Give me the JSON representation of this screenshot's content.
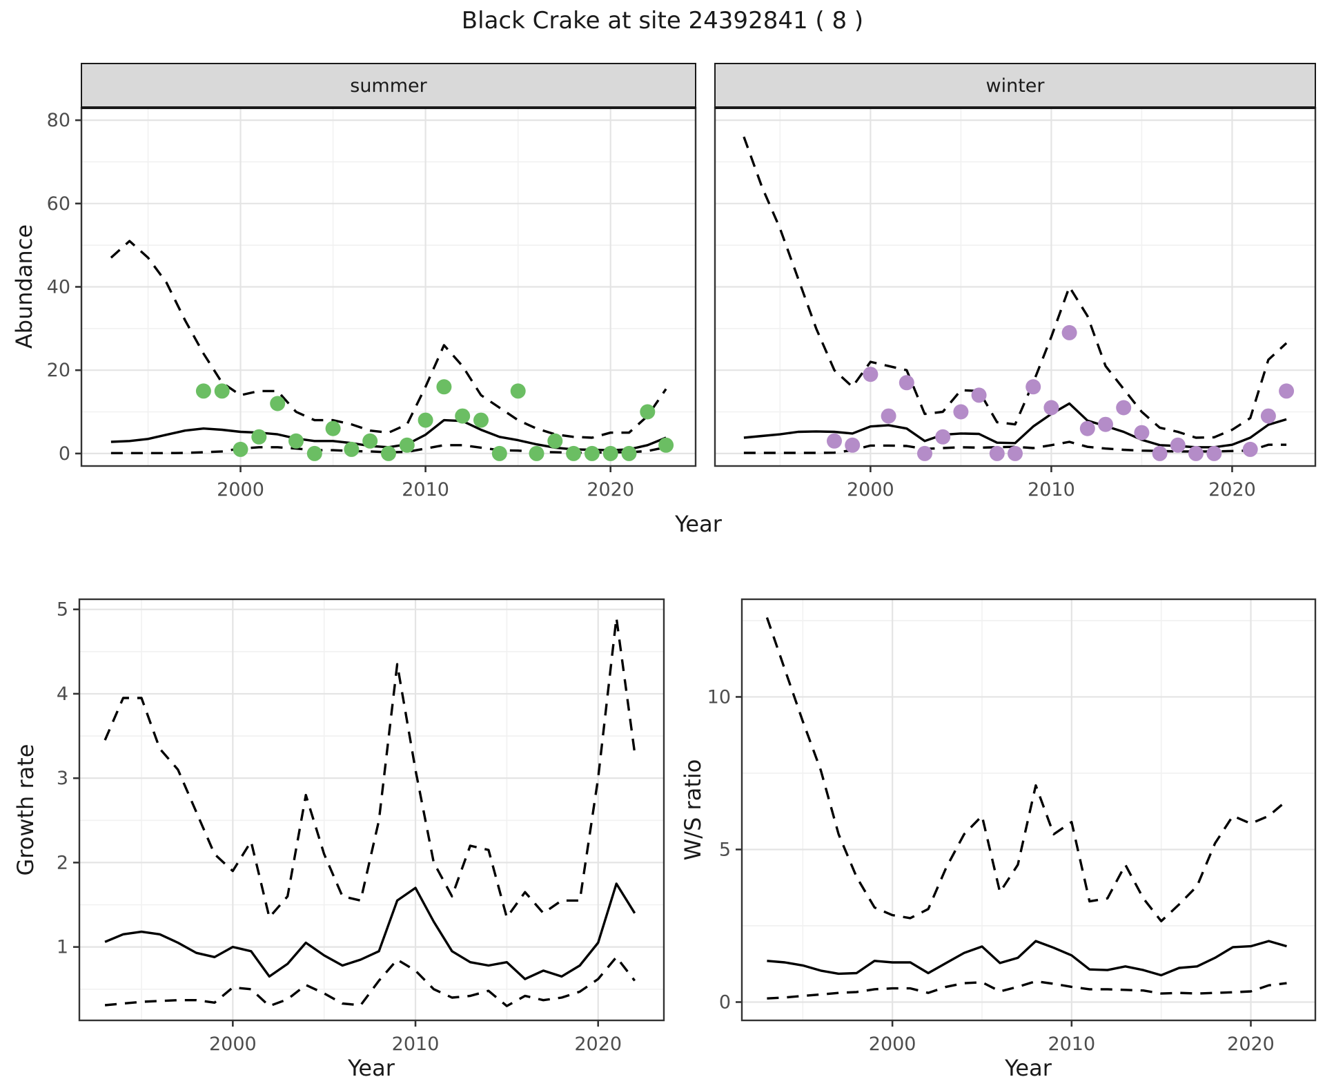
{
  "title": "Black Crake at site 24392841 ( 8 )",
  "colors": {
    "background": "#ffffff",
    "panel_background": "#ffffff",
    "grid_major": "#e4e4e4",
    "grid_minor": "#f1f1f1",
    "panel_border": "#333333",
    "strip_background": "#d9d9d9",
    "strip_border": "#1a1a1a",
    "tick_text": "#4d4d4d",
    "line": "#000000",
    "summer_point": "#6bbe63",
    "winter_point": "#b48cc8"
  },
  "chart_data": [
    {
      "id": "abundance-summer",
      "type": "line",
      "facet_label": "summer",
      "xlabel": "Year",
      "ylabel": "Abundance",
      "xlim": [
        1991.4,
        2024.6
      ],
      "ylim": [
        -3,
        83
      ],
      "xticks": [
        2000,
        2010,
        2020
      ],
      "xtick_labels": [
        "2000",
        "2010",
        "2020"
      ],
      "xminor": [
        1995,
        2005,
        2015
      ],
      "yticks": [
        0,
        20,
        40,
        60,
        80
      ],
      "ytick_labels": [
        "0",
        "20",
        "40",
        "60",
        "80"
      ],
      "yminor": [
        10,
        30,
        50,
        70
      ],
      "years": [
        1993,
        1994,
        1995,
        1996,
        1997,
        1998,
        1999,
        2000,
        2001,
        2002,
        2003,
        2004,
        2005,
        2006,
        2007,
        2008,
        2009,
        2010,
        2011,
        2012,
        2013,
        2014,
        2015,
        2016,
        2017,
        2018,
        2019,
        2020,
        2021,
        2022,
        2023
      ],
      "series": [
        {
          "name": "upper-credible",
          "style": "dashed",
          "values": [
            47,
            51,
            47,
            41,
            32,
            24,
            17,
            14,
            15,
            15,
            10,
            8,
            8,
            7,
            5.5,
            5,
            7,
            16,
            26,
            21,
            14,
            11,
            8,
            6,
            4.6,
            4,
            3.8,
            5,
            5,
            9,
            15.5
          ]
        },
        {
          "name": "estimate",
          "style": "solid",
          "values": [
            2.8,
            3,
            3.5,
            4.5,
            5.5,
            6,
            5.7,
            5.2,
            5,
            4.6,
            3.6,
            3,
            3,
            2.5,
            1.8,
            1.5,
            2.2,
            4.5,
            8,
            7.8,
            5.7,
            4,
            3.2,
            2.2,
            1.4,
            1,
            0.9,
            0.8,
            1,
            2,
            3.8
          ]
        },
        {
          "name": "lower-credible",
          "style": "dashed",
          "values": [
            0.1,
            0.1,
            0.1,
            0.1,
            0.15,
            0.3,
            0.5,
            1.2,
            1.5,
            1.5,
            1.2,
            0.8,
            0.8,
            0.6,
            0.5,
            0.3,
            0.4,
            1.2,
            2,
            2,
            1.4,
            0.8,
            0.7,
            0.4,
            0.3,
            0.2,
            0.2,
            0.3,
            0.3,
            0.6,
            1.5
          ]
        }
      ],
      "points": {
        "name": "observed-counts-summer",
        "color": "#6bbe63",
        "years": [
          1998,
          1999,
          2000,
          2001,
          2002,
          2003,
          2004,
          2005,
          2006,
          2007,
          2008,
          2009,
          2010,
          2011,
          2012,
          2013,
          2014,
          2015,
          2016,
          2017,
          2018,
          2019,
          2020,
          2021,
          2022,
          2023
        ],
        "values": [
          15,
          15,
          1,
          4,
          12,
          3,
          0,
          6,
          1,
          3,
          0,
          2,
          8,
          16,
          9,
          8,
          0,
          15,
          0,
          3,
          0,
          0,
          0,
          0,
          10,
          2
        ]
      }
    },
    {
      "id": "abundance-winter",
      "type": "line",
      "facet_label": "winter",
      "xlabel": "Year",
      "ylabel": "Abundance",
      "xlim": [
        1991.4,
        2024.6
      ],
      "ylim": [
        -3,
        83
      ],
      "xticks": [
        2000,
        2010,
        2020
      ],
      "xtick_labels": [
        "2000",
        "2010",
        "2020"
      ],
      "xminor": [
        1995,
        2005,
        2015
      ],
      "yticks": [
        0,
        20,
        40,
        60,
        80
      ],
      "ytick_labels": [
        "0",
        "20",
        "40",
        "60",
        "80"
      ],
      "yminor": [
        10,
        30,
        50,
        70
      ],
      "years": [
        1993,
        1994,
        1995,
        1996,
        1997,
        1998,
        1999,
        2000,
        2001,
        2002,
        2003,
        2004,
        2005,
        2006,
        2007,
        2008,
        2009,
        2010,
        2011,
        2012,
        2013,
        2014,
        2015,
        2016,
        2017,
        2018,
        2019,
        2020,
        2021,
        2022,
        2023
      ],
      "series": [
        {
          "name": "upper-credible",
          "style": "dashed",
          "values": [
            76,
            64,
            54,
            42,
            30,
            20,
            16,
            22,
            21,
            20,
            9.5,
            10,
            15.2,
            15,
            7.5,
            7,
            17,
            28,
            40,
            33,
            21,
            15.5,
            10,
            6.2,
            5.2,
            3.8,
            3.9,
            5.7,
            8.5,
            22.5,
            26.5
          ]
        },
        {
          "name": "estimate",
          "style": "solid",
          "values": [
            3.8,
            4.2,
            4.6,
            5.2,
            5.3,
            5.2,
            4.8,
            6.5,
            6.8,
            6,
            3,
            4.5,
            4.8,
            4.7,
            2.6,
            2.5,
            6.5,
            9.5,
            12,
            7.9,
            6.6,
            5.2,
            3.3,
            2,
            1.8,
            1.5,
            1.5,
            2.1,
            3.8,
            6.9,
            8.2
          ]
        },
        {
          "name": "lower-credible",
          "style": "dashed",
          "values": [
            0.15,
            0.15,
            0.15,
            0.15,
            0.15,
            0.2,
            0.8,
            1.9,
            1.9,
            1.8,
            1.1,
            1.3,
            1.5,
            1.4,
            1.5,
            1.6,
            1.3,
            2,
            2.8,
            1.6,
            1.2,
            0.9,
            0.7,
            0.6,
            0.5,
            0.5,
            0.5,
            0.6,
            0.7,
            2.1,
            2.1
          ]
        }
      ],
      "points": {
        "name": "observed-counts-winter",
        "color": "#b48cc8",
        "years": [
          1998,
          1999,
          2000,
          2001,
          2002,
          2003,
          2004,
          2005,
          2006,
          2007,
          2008,
          2009,
          2010,
          2011,
          2012,
          2013,
          2014,
          2015,
          2016,
          2017,
          2018,
          2019,
          2021,
          2022,
          2023
        ],
        "values": [
          3,
          2,
          19,
          9,
          17,
          0,
          4,
          10,
          14,
          0,
          0,
          16,
          11,
          29,
          6,
          7,
          11,
          5,
          0,
          2,
          0,
          0,
          1,
          9,
          15
        ]
      }
    },
    {
      "id": "growth-rate",
      "type": "line",
      "facet_label": null,
      "xlabel": "Year",
      "ylabel": "Growth rate",
      "xlim": [
        1991.6,
        2023.6
      ],
      "ylim": [
        0.13,
        5.12
      ],
      "xticks": [
        2000,
        2010,
        2020
      ],
      "xtick_labels": [
        "2000",
        "2010",
        "2020"
      ],
      "xminor": [
        1995,
        2005,
        2015
      ],
      "yticks": [
        1,
        2,
        3,
        4,
        5
      ],
      "ytick_labels": [
        "1",
        "2",
        "3",
        "4",
        "5"
      ],
      "yminor": [
        0.5,
        1.5,
        2.5,
        3.5,
        4.5
      ],
      "years": [
        1993,
        1994,
        1995,
        1996,
        1997,
        1998,
        1999,
        2000,
        2001,
        2002,
        2003,
        2004,
        2005,
        2006,
        2007,
        2008,
        2009,
        2010,
        2011,
        2012,
        2013,
        2014,
        2015,
        2016,
        2017,
        2018,
        2019,
        2020,
        2021,
        2022
      ],
      "series": [
        {
          "name": "upper-credible",
          "style": "dashed",
          "values": [
            3.45,
            3.95,
            3.95,
            3.35,
            3.1,
            2.6,
            2.1,
            1.9,
            2.25,
            1.35,
            1.6,
            2.8,
            2.1,
            1.6,
            1.55,
            2.5,
            4.35,
            3.1,
            2,
            1.6,
            2.2,
            2.15,
            1.35,
            1.65,
            1.4,
            1.55,
            1.55,
            3,
            4.9,
            3.3
          ]
        },
        {
          "name": "estimate",
          "style": "solid",
          "values": [
            1.06,
            1.15,
            1.18,
            1.15,
            1.05,
            0.93,
            0.88,
            1,
            0.95,
            0.65,
            0.8,
            1.05,
            0.9,
            0.78,
            0.85,
            0.95,
            1.55,
            1.7,
            1.3,
            0.95,
            0.82,
            0.78,
            0.82,
            0.62,
            0.72,
            0.65,
            0.78,
            1.05,
            1.75,
            1.4
          ]
        },
        {
          "name": "lower-credible",
          "style": "dashed",
          "values": [
            0.31,
            0.33,
            0.35,
            0.36,
            0.37,
            0.37,
            0.34,
            0.52,
            0.5,
            0.3,
            0.38,
            0.55,
            0.45,
            0.33,
            0.31,
            0.6,
            0.85,
            0.72,
            0.5,
            0.4,
            0.42,
            0.48,
            0.3,
            0.42,
            0.37,
            0.4,
            0.47,
            0.62,
            0.88,
            0.6
          ]
        }
      ],
      "points": null
    },
    {
      "id": "ws-ratio",
      "type": "line",
      "facet_label": null,
      "xlabel": "Year",
      "ylabel": "W/S ratio",
      "xlim": [
        1991.6,
        2023.6
      ],
      "ylim": [
        -0.6,
        13.2
      ],
      "xticks": [
        2000,
        2010,
        2020
      ],
      "xtick_labels": [
        "2000",
        "2010",
        "2020"
      ],
      "xminor": [
        1995,
        2005,
        2015
      ],
      "yticks": [
        0,
        5,
        10
      ],
      "ytick_labels": [
        "0",
        "5",
        "10"
      ],
      "yminor": [
        2.5,
        7.5,
        12.5
      ],
      "years": [
        1993,
        1994,
        1995,
        1996,
        1997,
        1998,
        1999,
        2000,
        2001,
        2002,
        2003,
        2004,
        2005,
        2006,
        2007,
        2008,
        2009,
        2010,
        2011,
        2012,
        2013,
        2014,
        2015,
        2016,
        2017,
        2018,
        2019,
        2020,
        2021,
        2022
      ],
      "series": [
        {
          "name": "upper-credible",
          "style": "dashed",
          "values": [
            12.6,
            10.9,
            9.2,
            7.6,
            5.5,
            4.1,
            3.1,
            2.85,
            2.75,
            3.05,
            4.4,
            5.5,
            6.1,
            3.6,
            4.5,
            7.1,
            5.5,
            5.9,
            3.3,
            3.4,
            4.5,
            3.4,
            2.65,
            3.2,
            3.8,
            5.2,
            6.1,
            5.85,
            6.1,
            6.6
          ]
        },
        {
          "name": "estimate",
          "style": "solid",
          "values": [
            1.35,
            1.3,
            1.2,
            1.03,
            0.93,
            0.95,
            1.35,
            1.3,
            1.3,
            0.95,
            1.28,
            1.61,
            1.82,
            1.28,
            1.45,
            2,
            1.78,
            1.53,
            1.07,
            1.05,
            1.17,
            1.05,
            0.88,
            1.12,
            1.17,
            1.45,
            1.8,
            1.83,
            2,
            1.83
          ]
        },
        {
          "name": "lower-credible",
          "style": "dashed",
          "values": [
            0.12,
            0.15,
            0.2,
            0.25,
            0.3,
            0.33,
            0.42,
            0.45,
            0.45,
            0.3,
            0.5,
            0.62,
            0.65,
            0.35,
            0.5,
            0.68,
            0.6,
            0.5,
            0.42,
            0.42,
            0.4,
            0.38,
            0.28,
            0.3,
            0.28,
            0.3,
            0.32,
            0.35,
            0.55,
            0.62
          ]
        }
      ],
      "points": null
    }
  ]
}
